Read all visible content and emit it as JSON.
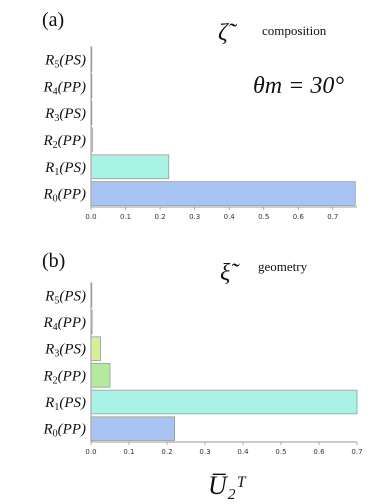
{
  "chart_data": [
    {
      "type": "bar",
      "orientation": "horizontal",
      "panel_label": "(a)",
      "symbol": "ζ̃",
      "subtitle": "composition",
      "annotation": "θm = 30°",
      "categories": [
        "R5(PS)",
        "R4(PP)",
        "R3(PS)",
        "R2(PP)",
        "R1(PS)",
        "R0(PP)"
      ],
      "values": [
        0.001,
        0.001,
        0.002,
        0.004,
        0.225,
        0.765
      ],
      "colors": [
        "#d9c7b8",
        "#d9c7b8",
        "#e8e6a8",
        "#b5e8a0",
        "#a9f2e6",
        "#a9c4f2"
      ],
      "xlim": [
        0,
        0.77
      ],
      "xticks": [
        0,
        0.1,
        0.2,
        0.3,
        0.4,
        0.5,
        0.6,
        0.7
      ],
      "xtick_labels": [
        "0.0",
        "0.1",
        "0.2",
        "0.3",
        "0.4",
        "0.5",
        "0.6",
        "0.7"
      ]
    },
    {
      "type": "bar",
      "orientation": "horizontal",
      "panel_label": "(b)",
      "symbol": "ξ̃",
      "subtitle": "geometry",
      "categories": [
        "R5(PS)",
        "R4(PP)",
        "R3(PS)",
        "R2(PP)",
        "R1(PS)",
        "R0(PP)"
      ],
      "values": [
        0.001,
        0.003,
        0.025,
        0.05,
        0.7,
        0.22
      ],
      "colors": [
        "#d9c7b8",
        "#d9c7b8",
        "#d8ef95",
        "#b5e8a0",
        "#a9f2e6",
        "#a9c4f2"
      ],
      "xlim": [
        0,
        0.7
      ],
      "xticks": [
        0,
        0.1,
        0.2,
        0.3,
        0.4,
        0.5,
        0.6,
        0.7
      ],
      "xtick_labels": [
        "0.0",
        "0.1",
        "0.2",
        "0.3",
        "0.4",
        "0.5",
        "0.6",
        "0.7"
      ],
      "xlabel": "U̅₂ᵀ"
    }
  ]
}
